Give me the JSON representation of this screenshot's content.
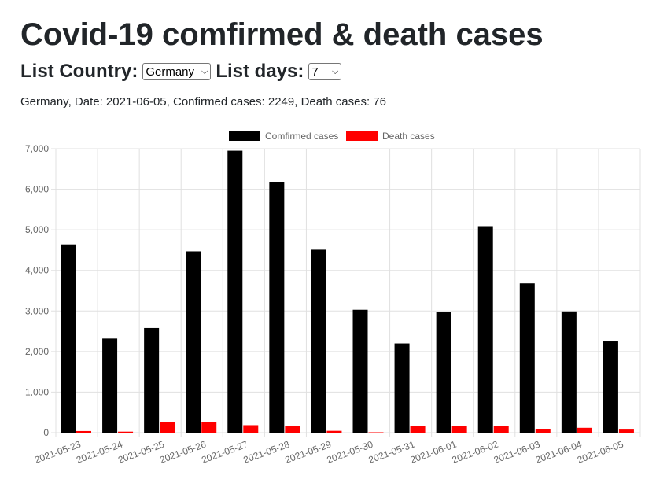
{
  "page": {
    "title": "Covid-19 comfirmed & death cases",
    "country_label": "List Country:",
    "country_value": "Germany",
    "days_label": "List days:",
    "days_value": "7",
    "summary": "Germany, Date: 2021-06-05, Confirmed cases: 2249, Death cases: 76"
  },
  "chart_data": {
    "type": "bar",
    "categories": [
      "2021-05-23",
      "2021-05-24",
      "2021-05-25",
      "2021-05-26",
      "2021-05-27",
      "2021-05-28",
      "2021-05-29",
      "2021-05-30",
      "2021-05-31",
      "2021-06-01",
      "2021-06-02",
      "2021-06-03",
      "2021-06-04",
      "2021-06-05"
    ],
    "series": [
      {
        "name": "Comfirmed cases",
        "color": "#000000",
        "values": [
          4640,
          2320,
          2580,
          4470,
          6950,
          6170,
          4510,
          3030,
          2200,
          2980,
          5090,
          3680,
          2990,
          2249
        ]
      },
      {
        "name": "Death cases",
        "color": "#ff0000",
        "values": [
          40,
          25,
          265,
          260,
          185,
          160,
          45,
          10,
          165,
          170,
          160,
          80,
          120,
          76
        ]
      }
    ],
    "ylim": [
      0,
      7000
    ],
    "yticks": [
      "0",
      "1,000",
      "2,000",
      "3,000",
      "4,000",
      "5,000",
      "6,000",
      "7,000"
    ],
    "legend_position": "top-center",
    "grid": true,
    "grid_color": "#e0e0e0",
    "tick_color": "#666666"
  }
}
